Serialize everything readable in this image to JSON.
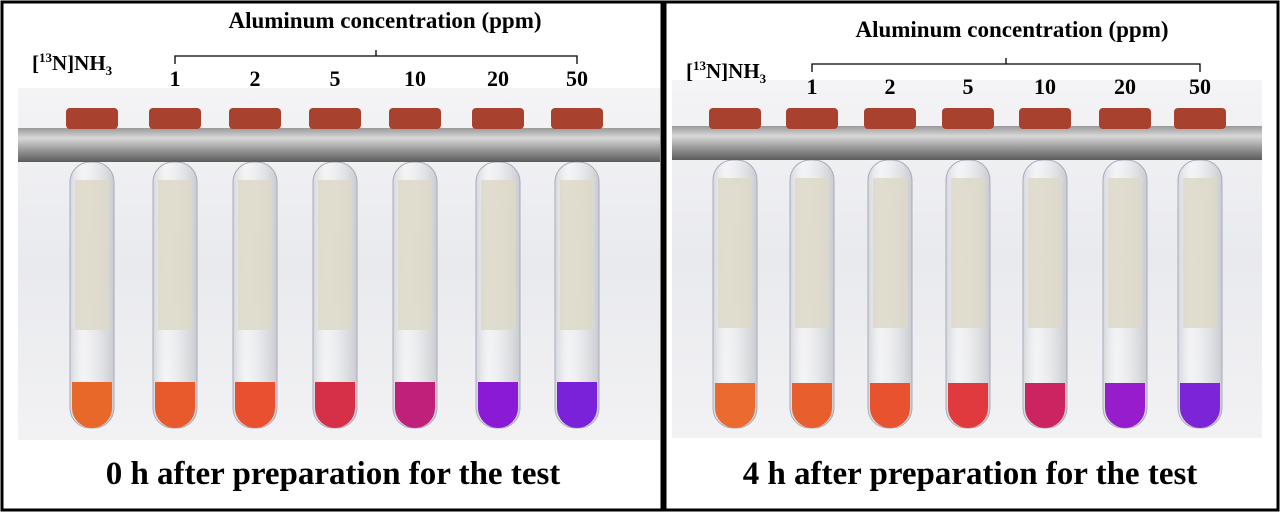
{
  "panels": [
    {
      "reference_label": {
        "open": "[",
        "sup": "13",
        "mid": "N]NH",
        "sub": "3"
      },
      "axis_title": "Aluminum concentration (ppm)",
      "concentrations": [
        1,
        2,
        5,
        10,
        20,
        50
      ],
      "caption": "0 h after preparation for the test"
    },
    {
      "reference_label": {
        "open": "[",
        "sup": "13",
        "mid": "N]NH",
        "sub": "3"
      },
      "axis_title": "Aluminum concentration (ppm)",
      "concentrations": [
        1,
        2,
        5,
        10,
        20,
        50
      ],
      "caption": "4 h after preparation for the test"
    }
  ]
}
